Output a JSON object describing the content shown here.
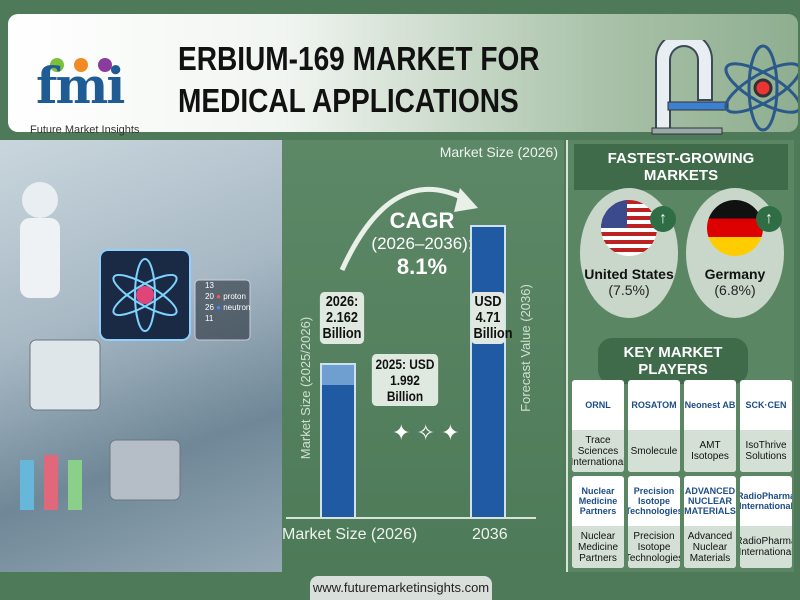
{
  "header": {
    "title_line1": "ERBIUM-169 MARKET FOR",
    "title_line2": "MEDICAL APPLICATIONS",
    "logo_text": "fmi",
    "logo_subtitle": "Future Market Insights",
    "icons": [
      "ct-scanner-icon",
      "atom-icon"
    ]
  },
  "photo": {
    "label_numbers": [
      "13",
      "20",
      "26",
      "11"
    ],
    "label_proton": "proton",
    "label_neutron": "neutron"
  },
  "chart_data": {
    "type": "bar",
    "title_top": "Market Size (2026)",
    "cagr_label": "CAGR",
    "cagr_period": "(2026–2036):",
    "cagr_value": "8.1%",
    "categories": [
      "Market Size (2026)",
      "2036"
    ],
    "ylabel_left": "Market Size (2025/2026)",
    "ylabel_right": "Forecast Value (2036)",
    "series": [
      {
        "values": [
          2.162,
          4.71
        ]
      }
    ],
    "base_2025": 1.992,
    "unit": "USD Billion",
    "labels": {
      "bar1_l1": "2026:",
      "bar1_l2": "2.162",
      "bar1_l3": "Billion",
      "base_l1": "2025: USD",
      "base_l2": "1.992 Billion",
      "bar2_l1": "USD",
      "bar2_l2": "4.71",
      "bar2_l3": "Billion"
    },
    "colors": {
      "bar": "#1f5aa3",
      "bar_2025_increment": "#6f9fd0"
    }
  },
  "fastest": {
    "heading": "FASTEST-GROWING MARKETS",
    "markets": [
      {
        "name": "United States",
        "value": "(7.5%)"
      },
      {
        "name": "Germany",
        "value": "(6.8%)"
      }
    ]
  },
  "players": {
    "heading": "KEY MARKET PLAYERS",
    "items": [
      {
        "logo": "ORNL",
        "name": "Trace Sciences International"
      },
      {
        "logo": "ROSATOM",
        "name": "Smolecule"
      },
      {
        "logo": "Neonest AB",
        "name": "AMT Isotopes"
      },
      {
        "logo": "SCK·CEN",
        "name": "IsoThrive Solutions"
      },
      {
        "logo": "Nuclear Medicine Partners",
        "name": "Nuclear Medicine Partners"
      },
      {
        "logo": "Precision Isotope Technologies",
        "name": "Precision Isotope Technologies"
      },
      {
        "logo": "ADVANCED NUCLEAR MATERIALS",
        "name": "Advanced Nuclear Materials"
      },
      {
        "logo": "RadioPharma International",
        "name": "RadioPharma International"
      }
    ]
  },
  "footer": {
    "url": "www.futuremarketinsights.com"
  }
}
